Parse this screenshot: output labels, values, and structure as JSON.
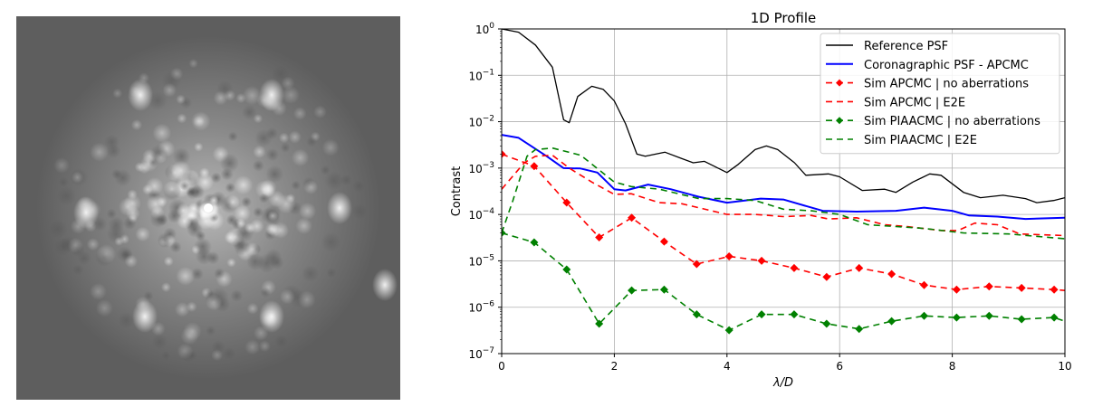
{
  "image_panel": {
    "description_icon": "psf-speckle-image"
  },
  "chart_data": {
    "type": "line",
    "title": "1D Profile",
    "xlabel": "λ/D",
    "ylabel": "Contrast",
    "xlim": [
      0,
      10
    ],
    "ylim": [
      1e-07,
      1
    ],
    "yscale": "log",
    "grid": true,
    "legend_position": "top-right",
    "xticks": [
      "0",
      "2",
      "4",
      "6",
      "8",
      "10"
    ],
    "yticks": [
      0,
      -1,
      -2,
      -3,
      -4,
      -5,
      -6,
      -7
    ],
    "series": [
      {
        "name": "Reference PSF",
        "color": "#000000",
        "style": "solid",
        "marker": false,
        "x": [
          0,
          0.3,
          0.6,
          0.9,
          1.1,
          1.2,
          1.35,
          1.6,
          1.8,
          2.0,
          2.2,
          2.4,
          2.55,
          2.9,
          3.2,
          3.4,
          3.6,
          4.0,
          4.2,
          4.5,
          4.7,
          4.9,
          5.2,
          5.4,
          5.8,
          6.0,
          6.4,
          6.8,
          7.0,
          7.3,
          7.6,
          7.8,
          8.2,
          8.5,
          8.9,
          9.3,
          9.5,
          9.8,
          10
        ],
        "y": [
          1,
          0.85,
          0.45,
          0.15,
          0.011,
          0.0095,
          0.035,
          0.058,
          0.05,
          0.028,
          0.009,
          0.002,
          0.0018,
          0.0022,
          0.0016,
          0.0013,
          0.0014,
          0.0008,
          0.0012,
          0.0025,
          0.003,
          0.0025,
          0.0013,
          0.0007,
          0.00075,
          0.00065,
          0.00033,
          0.00035,
          0.0003,
          0.0005,
          0.00075,
          0.0007,
          0.0003,
          0.00023,
          0.00026,
          0.00022,
          0.00018,
          0.0002,
          0.00023
        ]
      },
      {
        "name": "Coronagraphic PSF - APCMC",
        "color": "#0000ff",
        "style": "solid",
        "marker": false,
        "x": [
          0,
          0.3,
          0.8,
          1.1,
          1.4,
          1.7,
          2.0,
          2.2,
          2.6,
          3.0,
          3.5,
          4.0,
          4.6,
          5.0,
          5.7,
          6.3,
          7.0,
          7.5,
          8.0,
          8.3,
          8.8,
          9.3,
          10
        ],
        "y": [
          0.0052,
          0.0045,
          0.0018,
          0.001,
          0.00098,
          0.0008,
          0.00035,
          0.00033,
          0.00044,
          0.00035,
          0.00024,
          0.00018,
          0.00022,
          0.00021,
          0.00012,
          0.000115,
          0.00012,
          0.00014,
          0.00012,
          9.5e-05,
          9e-05,
          8e-05,
          8.5e-05
        ]
      },
      {
        "name": "Sim APCMC | no aberrations",
        "color": "#ff0000",
        "style": "dashed",
        "marker": true,
        "x": [
          0,
          0.577,
          1.154,
          1.731,
          2.308,
          2.885,
          3.462,
          4.038,
          4.615,
          5.192,
          5.769,
          6.346,
          6.923,
          7.5,
          8.077,
          8.654,
          9.231,
          9.808,
          10
        ],
        "y": [
          0.002,
          0.0011,
          0.00018,
          3.2e-05,
          8.5e-05,
          2.6e-05,
          8.5e-06,
          1.25e-05,
          1e-05,
          7e-06,
          4.5e-06,
          7e-06,
          5.2e-06,
          3e-06,
          2.4e-06,
          2.8e-06,
          2.6e-06,
          2.4e-06,
          2.3e-06
        ]
      },
      {
        "name": "Sim APCMC | E2E",
        "color": "#ff0000",
        "style": "dashed",
        "marker": false,
        "x": [
          0,
          0.4,
          0.6,
          0.9,
          1.2,
          1.6,
          2.0,
          2.3,
          2.8,
          3.2,
          4.0,
          4.5,
          5.0,
          5.5,
          5.8,
          6.3,
          6.8,
          7.2,
          7.8,
          8.1,
          8.4,
          8.8,
          9.2,
          10
        ],
        "y": [
          0.00035,
          0.0013,
          0.0018,
          0.0019,
          0.001,
          0.0005,
          0.00027,
          0.00028,
          0.00018,
          0.00017,
          0.0001,
          0.0001,
          9e-05,
          9.5e-05,
          8e-05,
          8.5e-05,
          6e-05,
          5.5e-05,
          4.5e-05,
          4.5e-05,
          6.5e-05,
          6e-05,
          3.8e-05,
          3.5e-05
        ]
      },
      {
        "name": "Sim PIAACMC | no aberrations",
        "color": "#008000",
        "style": "dashed",
        "marker": true,
        "x": [
          0,
          0.577,
          1.154,
          1.731,
          2.308,
          2.885,
          3.462,
          4.038,
          4.615,
          5.192,
          5.769,
          6.346,
          6.923,
          7.5,
          8.077,
          8.654,
          9.231,
          9.808,
          10
        ],
        "y": [
          4e-05,
          2.5e-05,
          6.5e-06,
          4.4e-07,
          2.3e-06,
          2.4e-06,
          7e-07,
          3.2e-07,
          7e-07,
          7e-07,
          4.4e-07,
          3.4e-07,
          5e-07,
          6.5e-07,
          6e-07,
          6.5e-07,
          5.5e-07,
          6e-07,
          5e-07
        ]
      },
      {
        "name": "Sim PIAACMC | E2E",
        "color": "#008000",
        "style": "dashed",
        "marker": false,
        "x": [
          0,
          0.2,
          0.45,
          0.6,
          0.9,
          1.4,
          2.0,
          2.3,
          2.8,
          3.5,
          4.0,
          4.5,
          5.0,
          5.5,
          6.0,
          6.5,
          7.0,
          7.5,
          8.2,
          9.0,
          10
        ],
        "y": [
          4e-05,
          0.0002,
          0.0018,
          0.0025,
          0.0027,
          0.0019,
          0.0005,
          0.0004,
          0.00035,
          0.00022,
          0.00022,
          0.0002,
          0.00013,
          0.00012,
          0.0001,
          6e-05,
          5.5e-05,
          5e-05,
          4e-05,
          3.8e-05,
          3e-05
        ]
      }
    ]
  }
}
